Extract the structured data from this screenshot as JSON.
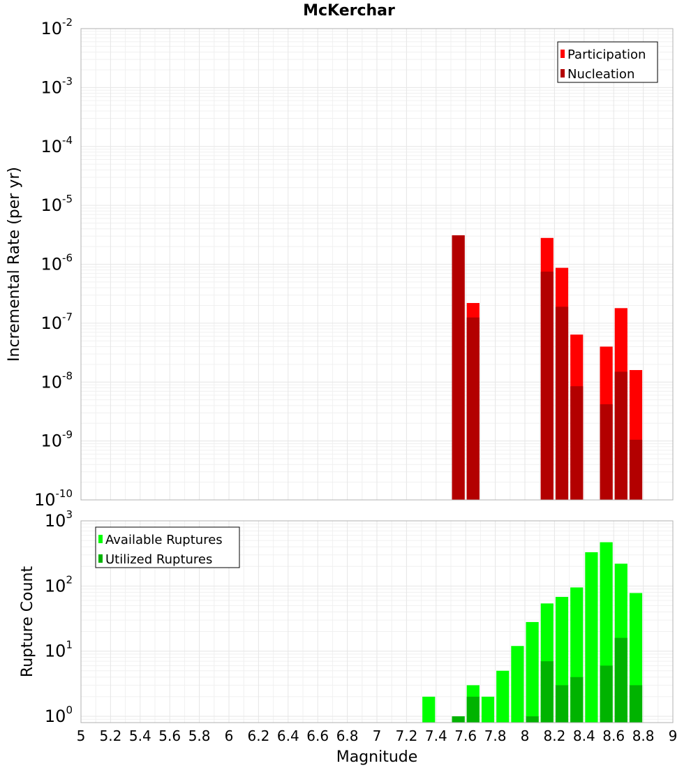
{
  "title": "McKerchar",
  "x_axis_label": "Magnitude",
  "chart_data": [
    {
      "type": "bar",
      "yscale": "log",
      "ylabel": "Incremental Rate (per yr)",
      "xlim": [
        5,
        9
      ],
      "ylim": [
        1e-10,
        0.01
      ],
      "y_tick_exponents": [
        -10,
        -9,
        -8,
        -7,
        -6,
        -5,
        -4,
        -3,
        -2
      ],
      "legend_position": "top-right",
      "bin_width": 0.1,
      "series": [
        {
          "name": "Participation",
          "color": "#ff0000",
          "x": [
            7.55,
            7.65,
            8.15,
            8.25,
            8.35,
            8.55,
            8.65,
            8.75
          ],
          "values": [
            3.1e-06,
            2.2e-07,
            2.8e-06,
            8.7e-07,
            6.4e-08,
            4e-08,
            1.8e-07,
            1.6e-08
          ]
        },
        {
          "name": "Nucleation",
          "color": "#b30000",
          "x": [
            7.55,
            7.65,
            8.15,
            8.25,
            8.35,
            8.55,
            8.65,
            8.75
          ],
          "values": [
            3.1e-06,
            1.25e-07,
            7.5e-07,
            1.9e-07,
            8.5e-09,
            4.2e-09,
            1.5e-08,
            1.05e-09
          ]
        }
      ]
    },
    {
      "type": "bar",
      "yscale": "log",
      "ylabel": "Rupture Count",
      "xlim": [
        5,
        9
      ],
      "ylim": [
        0.8,
        1000
      ],
      "y_tick_exponents": [
        0,
        1,
        2,
        3
      ],
      "legend_position": "top-left",
      "bin_width": 0.1,
      "x_ticks": [
        "5",
        "5.2",
        "5.4",
        "5.6",
        "5.8",
        "6",
        "6.2",
        "6.4",
        "6.6",
        "6.8",
        "7",
        "7.2",
        "7.4",
        "7.6",
        "7.8",
        "8",
        "8.2",
        "8.4",
        "8.6",
        "8.8",
        "9"
      ],
      "series": [
        {
          "name": "Available Ruptures",
          "color": "#00ff00",
          "x": [
            7.35,
            7.55,
            7.65,
            7.75,
            7.85,
            7.95,
            8.05,
            8.15,
            8.25,
            8.35,
            8.45,
            8.55,
            8.65,
            8.75
          ],
          "values": [
            2,
            1,
            3,
            2,
            5,
            12,
            28,
            54,
            68,
            95,
            330,
            470,
            220,
            78
          ]
        },
        {
          "name": "Utilized Ruptures",
          "color": "#00b300",
          "x": [
            7.55,
            7.65,
            8.05,
            8.15,
            8.25,
            8.35,
            8.55,
            8.65,
            8.75
          ],
          "values": [
            1,
            2,
            1,
            7,
            3,
            4,
            6,
            16,
            3
          ]
        }
      ]
    }
  ]
}
